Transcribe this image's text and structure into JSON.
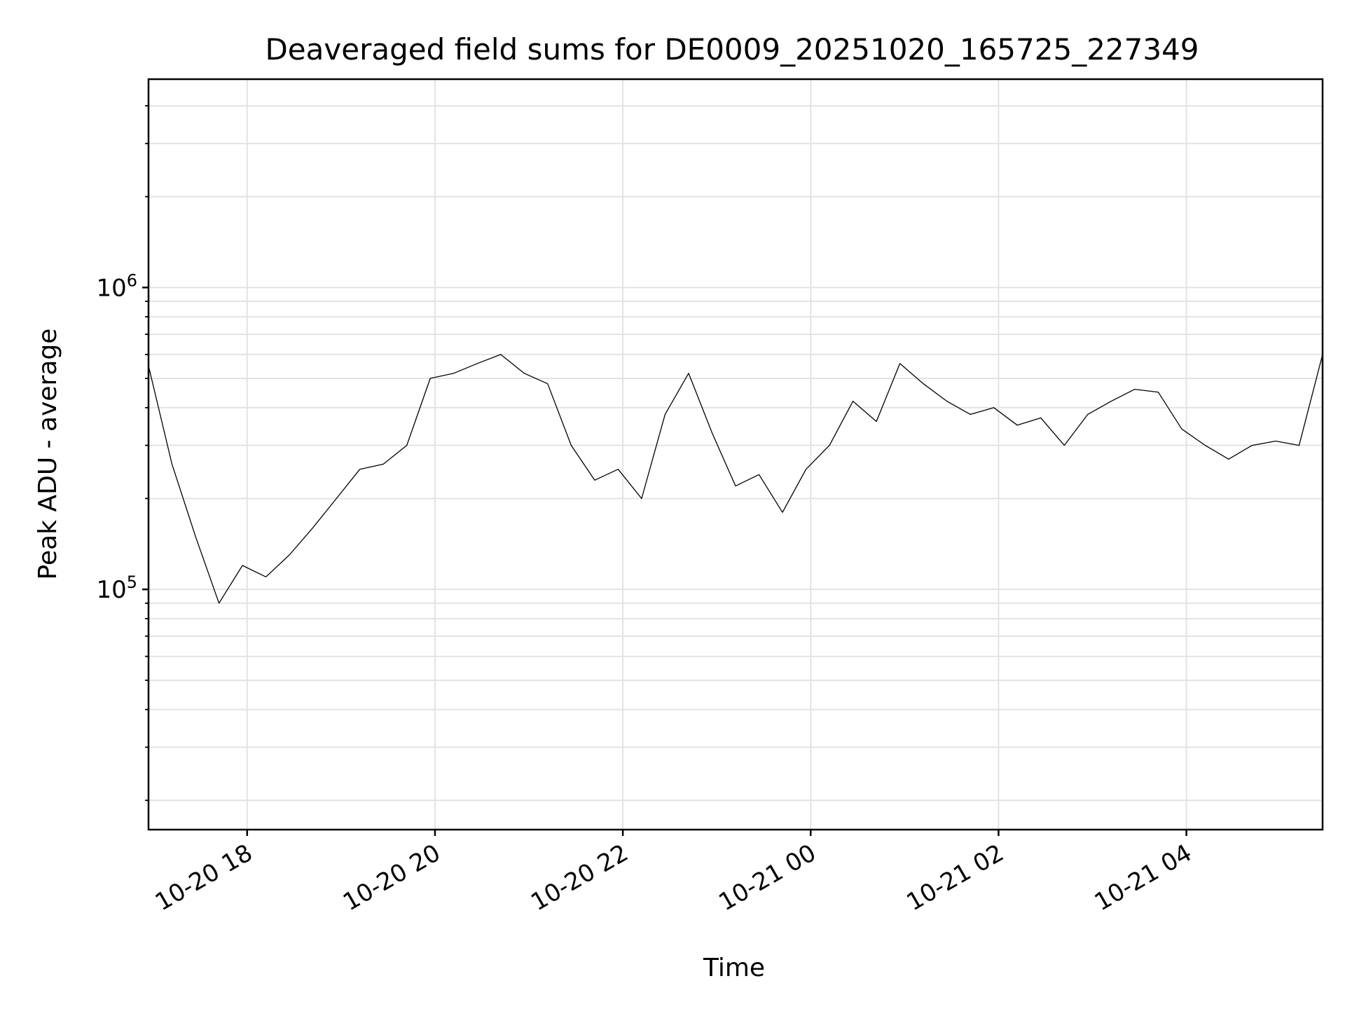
{
  "chart_data": {
    "type": "line",
    "title": "Deaveraged field sums for DE0009_20251020_165725_227349",
    "xlabel": "Time",
    "ylabel": "Peak ADU - average",
    "y_scale": "log",
    "ylim": [
      16000,
      4900000
    ],
    "xlim": [
      "2025-10-20T16:57",
      "2025-10-21T05:27"
    ],
    "x_ticks": [
      "2025-10-20T18:00",
      "2025-10-20T20:00",
      "2025-10-20T22:00",
      "2025-10-21T00:00",
      "2025-10-21T02:00",
      "2025-10-21T04:00"
    ],
    "x_tick_labels": [
      "10-20 18",
      "10-20 20",
      "10-20 22",
      "10-21 00",
      "10-21 02",
      "10-21 04"
    ],
    "y_ticks": [
      100000,
      1000000
    ],
    "y_tick_labels": [
      {
        "base": "10",
        "exp": "5"
      },
      {
        "base": "10",
        "exp": "6"
      }
    ],
    "grid": true,
    "line_color": "#000000",
    "series": [
      {
        "x": [
          "2025-10-20T16:57",
          "2025-10-20T17:12",
          "2025-10-20T17:27",
          "2025-10-20T17:42",
          "2025-10-20T17:57",
          "2025-10-20T18:12",
          "2025-10-20T18:27",
          "2025-10-20T18:42",
          "2025-10-20T18:57",
          "2025-10-20T19:12",
          "2025-10-20T19:27",
          "2025-10-20T19:42",
          "2025-10-20T19:57",
          "2025-10-20T20:12",
          "2025-10-20T20:27",
          "2025-10-20T20:42",
          "2025-10-20T20:57",
          "2025-10-20T21:12",
          "2025-10-20T21:27",
          "2025-10-20T21:42",
          "2025-10-20T21:57",
          "2025-10-20T22:12",
          "2025-10-20T22:27",
          "2025-10-20T22:42",
          "2025-10-20T22:57",
          "2025-10-20T23:12",
          "2025-10-20T23:27",
          "2025-10-20T23:42",
          "2025-10-20T23:57",
          "2025-10-21T00:12",
          "2025-10-21T00:27",
          "2025-10-21T00:42",
          "2025-10-21T00:57",
          "2025-10-21T01:12",
          "2025-10-21T01:27",
          "2025-10-21T01:42",
          "2025-10-21T01:57",
          "2025-10-21T02:12",
          "2025-10-21T02:27",
          "2025-10-21T02:42",
          "2025-10-21T02:57",
          "2025-10-21T03:12",
          "2025-10-21T03:27",
          "2025-10-21T03:42",
          "2025-10-21T03:57",
          "2025-10-21T04:12",
          "2025-10-21T04:27",
          "2025-10-21T04:42",
          "2025-10-21T04:57",
          "2025-10-21T05:12",
          "2025-10-21T05:27"
        ],
        "y": [
          550000,
          260000,
          150000,
          90000,
          120000,
          110000,
          130000,
          160000,
          200000,
          250000,
          260000,
          300000,
          500000,
          520000,
          560000,
          600000,
          520000,
          480000,
          300000,
          230000,
          250000,
          200000,
          380000,
          520000,
          330000,
          220000,
          240000,
          180000,
          250000,
          300000,
          420000,
          360000,
          560000,
          480000,
          420000,
          380000,
          400000,
          350000,
          370000,
          300000,
          380000,
          420000,
          460000,
          450000,
          340000,
          300000,
          270000,
          300000,
          310000,
          300000,
          600000
        ]
      }
    ]
  }
}
